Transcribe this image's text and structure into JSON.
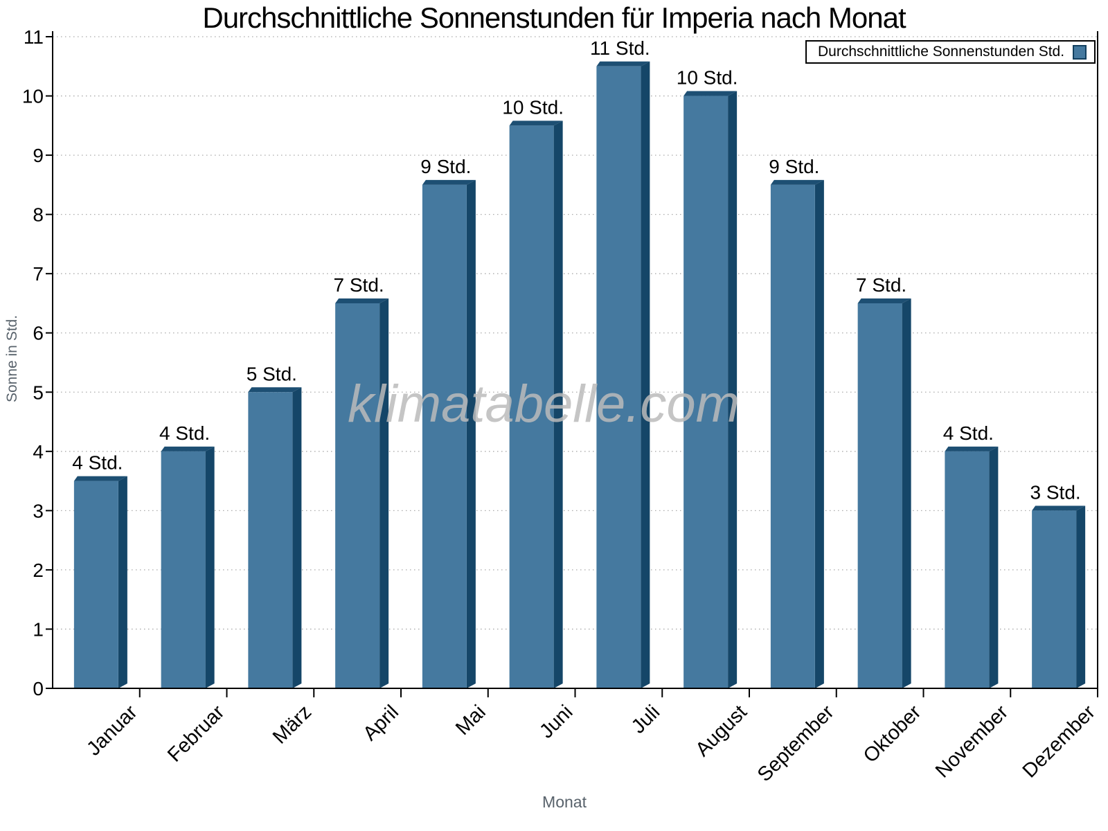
{
  "chart_data": {
    "type": "bar",
    "title": "Durchschnittliche Sonnenstunden für Imperia nach Monat",
    "xlabel": "Monat",
    "ylabel": "Sonne in Std.",
    "watermark": "klimatabelle.com",
    "categories": [
      "Januar",
      "Februar",
      "März",
      "April",
      "Mai",
      "Juni",
      "Juli",
      "August",
      "September",
      "Oktober",
      "November",
      "Dezember"
    ],
    "values": [
      3.5,
      4,
      5,
      6.5,
      8.5,
      9.5,
      10.5,
      10,
      8.5,
      6.5,
      4,
      3
    ],
    "bar_labels": [
      "4 Std.",
      "4 Std.",
      "5 Std.",
      "7 Std.",
      "9 Std.",
      "10 Std.",
      "11 Std.",
      "10 Std.",
      "9 Std.",
      "7 Std.",
      "4 Std.",
      "3 Std."
    ],
    "ylim": [
      0,
      11
    ],
    "yticks": [
      0,
      1,
      2,
      3,
      4,
      5,
      6,
      7,
      8,
      9,
      10,
      11
    ],
    "grid": "horizontal-dotted",
    "legend": {
      "label": "Durchschnittliche Sonnenstunden Std.",
      "position": "top-right"
    },
    "colors": {
      "bar_face": "#45799F",
      "bar_side": "#154668",
      "bar_top": "#1D4F73",
      "axis": "#000000",
      "grid": "#A9A9A9",
      "text": "#000000",
      "muted_label": "#58626B",
      "watermark": "#BBBBBB"
    }
  }
}
